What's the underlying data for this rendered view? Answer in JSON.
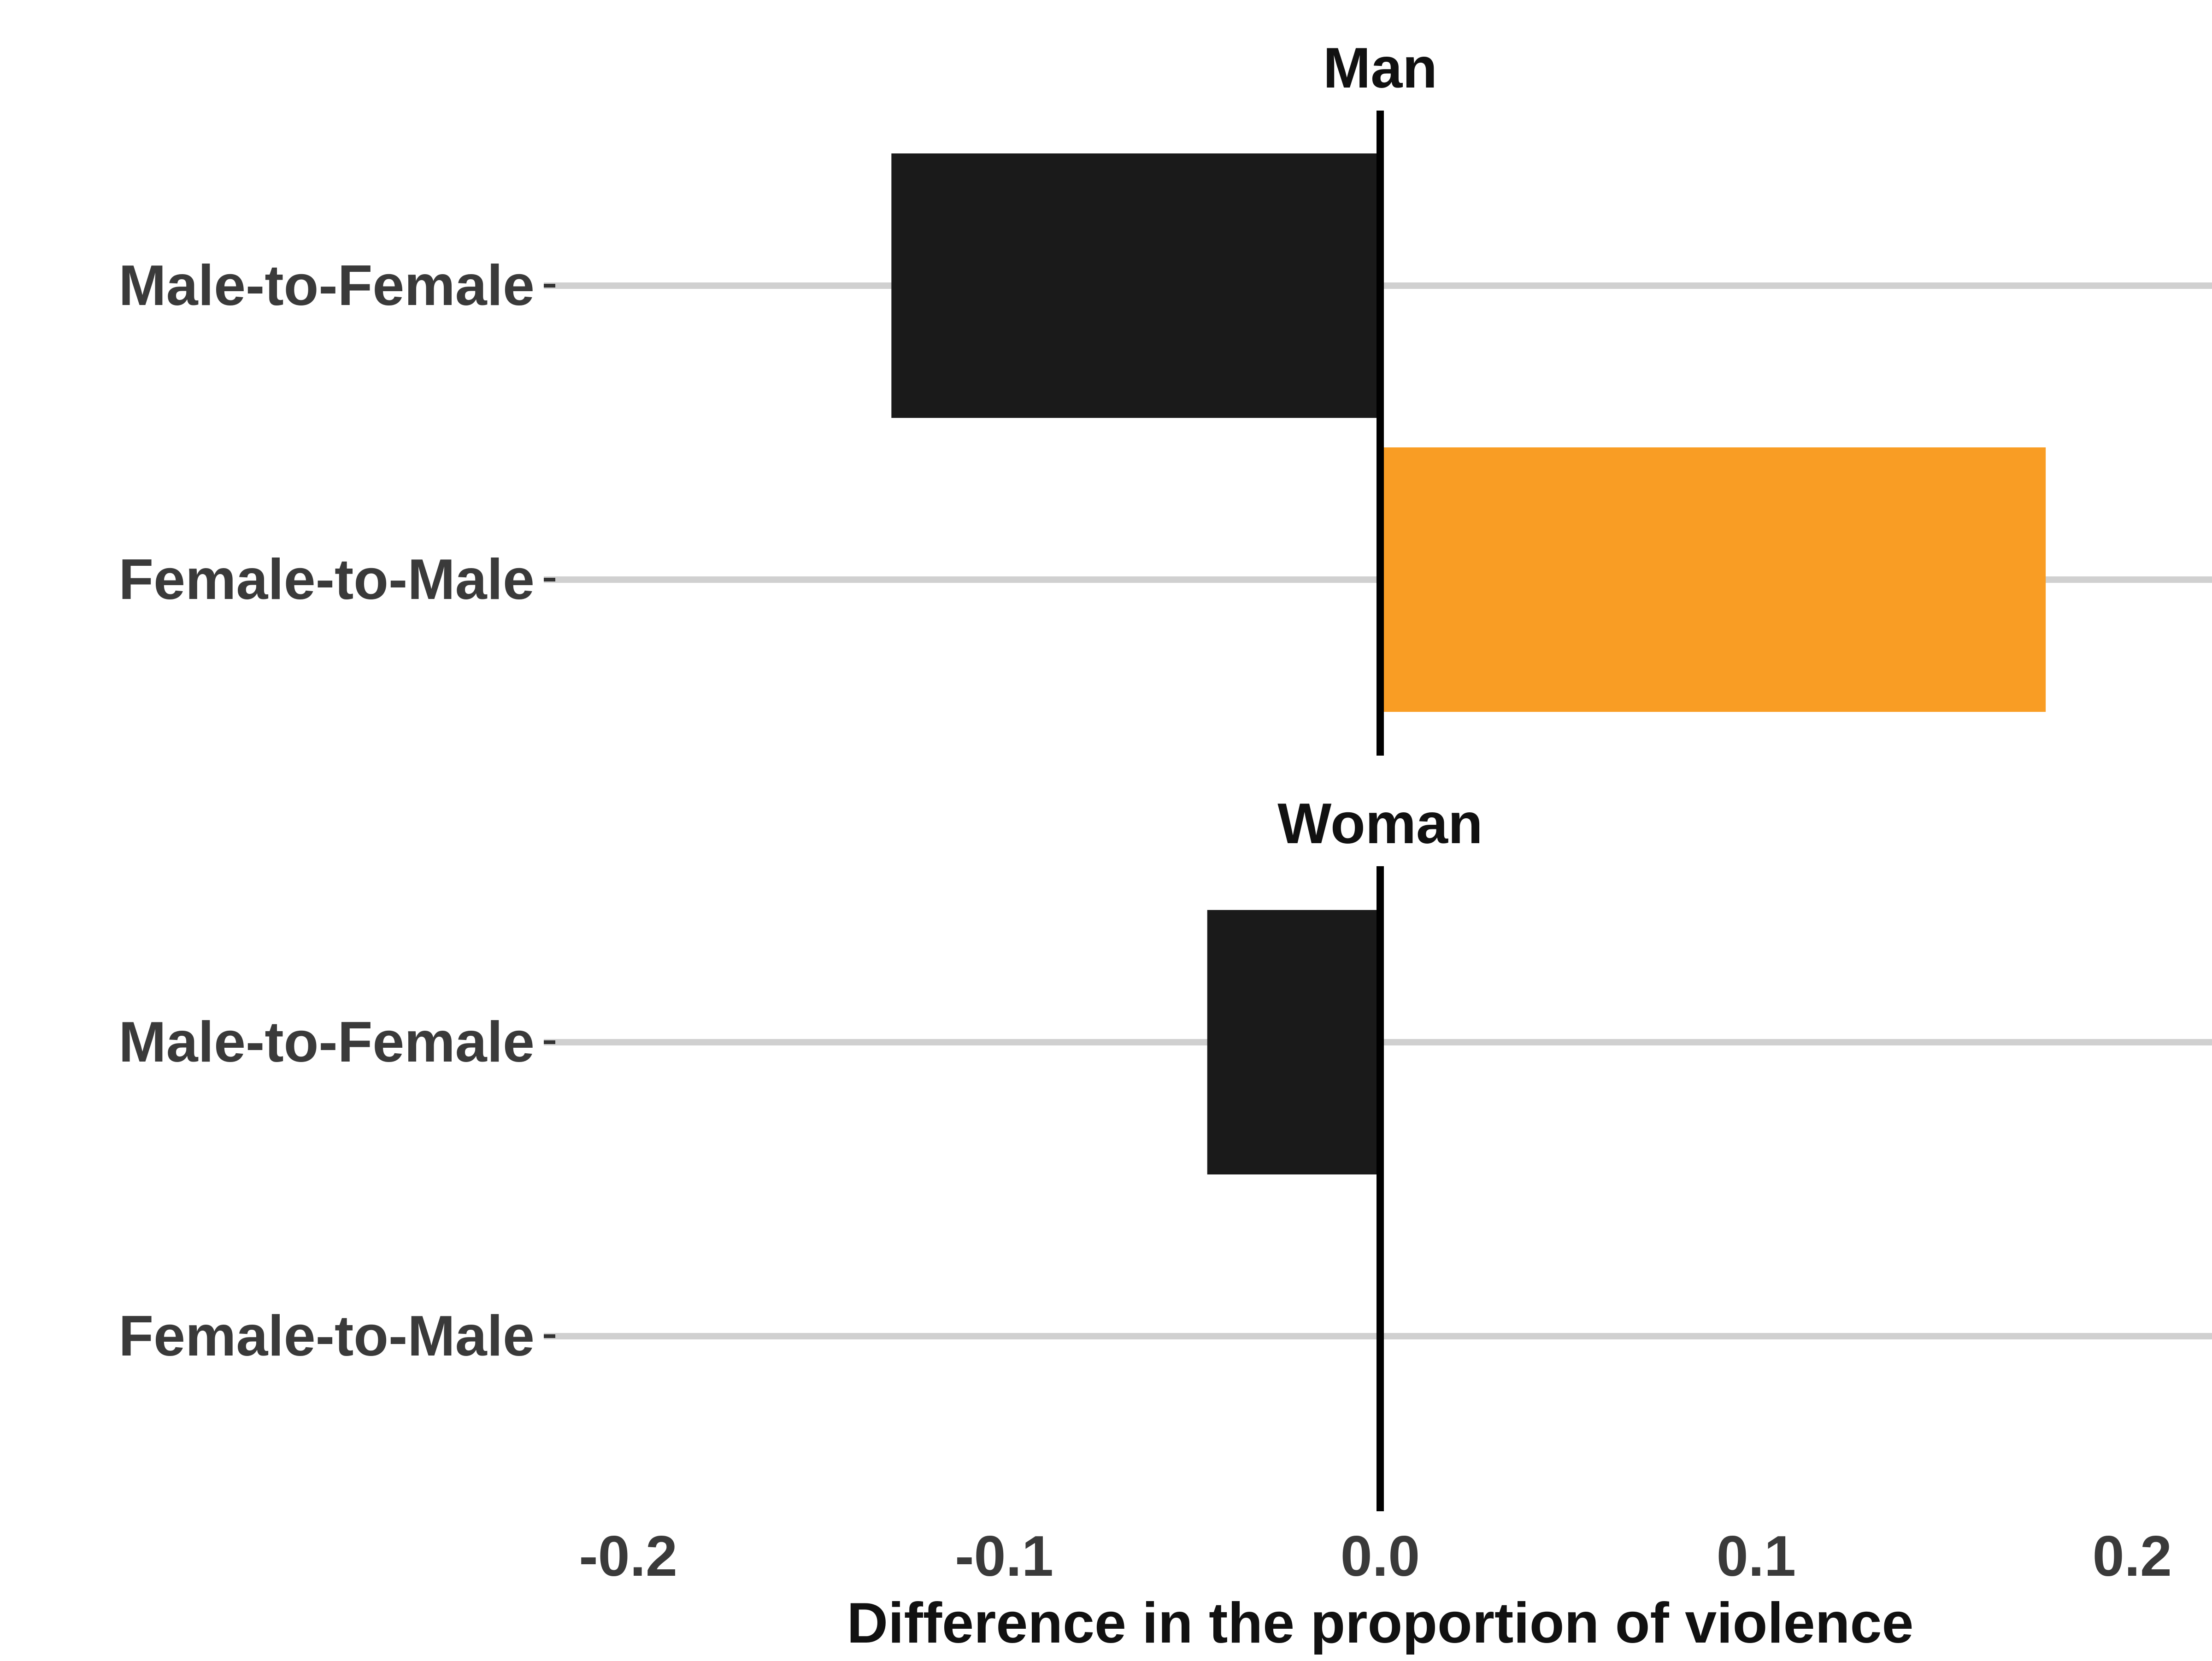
{
  "chart_data": {
    "type": "bar",
    "orientation": "horizontal",
    "facets": [
      "Man",
      "Woman"
    ],
    "categories": [
      "Male-to-Female",
      "Female-to-Male"
    ],
    "series": [
      {
        "facet": "Man",
        "values": [
          -0.13,
          0.177
        ],
        "colors": [
          "#1a1a1a",
          "#f99d24"
        ]
      },
      {
        "facet": "Woman",
        "values": [
          -0.046,
          0.0
        ],
        "colors": [
          "#1a1a1a",
          "#1a1a1a"
        ]
      }
    ],
    "xlabel": "Difference in the proportion of violence",
    "ylabel": "",
    "xlim": [
      -0.22,
      0.22
    ],
    "xticks": [
      -0.2,
      -0.1,
      0.0,
      0.1,
      0.2
    ],
    "xtick_labels": [
      "-0.2",
      "-0.1",
      "0.0",
      "0.1",
      "0.2"
    ],
    "grid": "horizontal",
    "legend": "none",
    "colors": {
      "negative": "#1a1a1a",
      "positive": "#f99d24",
      "grid": "#d0d0d0",
      "zero_line": "#000000"
    }
  }
}
